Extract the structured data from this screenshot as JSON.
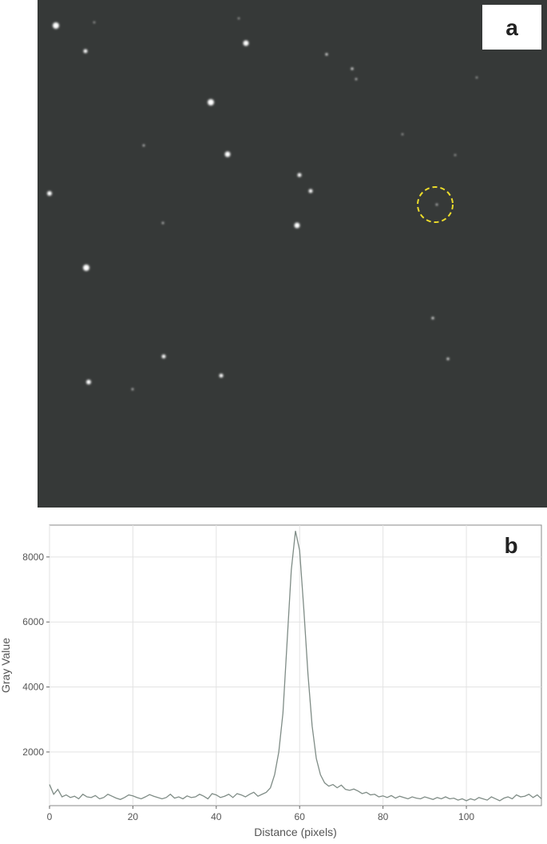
{
  "image": {
    "label": "a"
  },
  "chart_data": {
    "type": "line",
    "panel_label": "b",
    "x_label": "Distance (pixels)",
    "y_label": "Gray Value",
    "x": [
      0,
      1,
      2,
      3,
      4,
      5,
      6,
      7,
      8,
      9,
      10,
      11,
      12,
      13,
      14,
      15,
      16,
      17,
      18,
      19,
      20,
      21,
      22,
      23,
      24,
      25,
      26,
      27,
      28,
      29,
      30,
      31,
      32,
      33,
      34,
      35,
      36,
      37,
      38,
      39,
      40,
      41,
      42,
      43,
      44,
      45,
      46,
      47,
      48,
      49,
      50,
      51,
      52,
      53,
      54,
      55,
      56,
      57,
      58,
      59,
      60,
      61,
      62,
      63,
      64,
      65,
      66,
      67,
      68,
      69,
      70,
      71,
      72,
      73,
      74,
      75,
      76,
      77,
      78,
      79,
      80,
      81,
      82,
      83,
      84,
      85,
      86,
      87,
      88,
      89,
      90,
      91,
      92,
      93,
      94,
      95,
      96,
      97,
      98,
      99,
      100,
      101,
      102,
      103,
      104,
      105,
      106,
      107,
      108,
      109,
      110,
      111,
      112,
      113,
      114,
      115,
      116,
      117,
      118
    ],
    "series": [
      {
        "color": "#7f8c86",
        "values": [
          1000,
          700,
          850,
          620,
          680,
          600,
          640,
          560,
          700,
          620,
          600,
          660,
          560,
          600,
          700,
          640,
          580,
          540,
          600,
          680,
          650,
          600,
          560,
          620,
          690,
          640,
          600,
          560,
          600,
          700,
          580,
          620,
          560,
          650,
          600,
          620,
          700,
          640,
          560,
          720,
          680,
          600,
          640,
          700,
          600,
          720,
          680,
          620,
          700,
          760,
          640,
          700,
          760,
          900,
          1300,
          2000,
          3200,
          5400,
          7600,
          8800,
          8200,
          6400,
          4400,
          2800,
          1800,
          1300,
          1050,
          950,
          1000,
          900,
          980,
          850,
          820,
          860,
          800,
          720,
          760,
          680,
          700,
          620,
          650,
          600,
          660,
          580,
          640,
          600,
          560,
          620,
          580,
          560,
          620,
          580,
          540,
          600,
          560,
          620,
          560,
          580,
          520,
          560,
          500,
          560,
          520,
          600,
          560,
          520,
          620,
          560,
          500,
          580,
          620,
          560,
          680,
          620,
          640,
          700,
          600,
          680,
          560
        ]
      }
    ],
    "xlim": [
      0,
      118
    ],
    "ylim": [
      350,
      8980
    ],
    "xticks": [
      0,
      20,
      40,
      60,
      80,
      100
    ],
    "yticks": [
      2000,
      4000,
      6000,
      8000
    ],
    "grid": true
  }
}
